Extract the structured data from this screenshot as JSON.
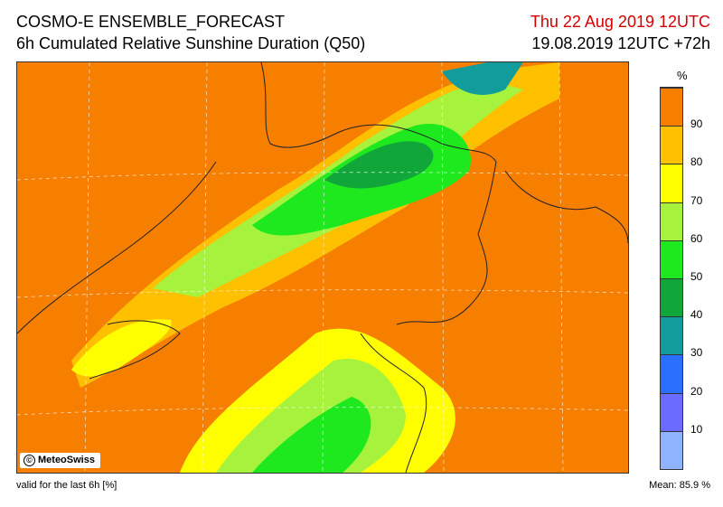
{
  "header": {
    "title": "COSMO-E ENSEMBLE_FORECAST",
    "subtitle": "6h Cumulated Relative Sunshine Duration (Q50)",
    "valid_date": "Thu 22 Aug 2019 12UTC",
    "run_info": "19.08.2019 12UTC +72h"
  },
  "legend": {
    "unit": "%",
    "ticks": [
      "10",
      "20",
      "30",
      "40",
      "50",
      "60",
      "70",
      "80",
      "90"
    ],
    "colors": [
      "#8fb3ff",
      "#6b6bff",
      "#2a6fff",
      "#139c9c",
      "#10a63a",
      "#1ee81e",
      "#a6f23c",
      "#ffff00",
      "#ffc000",
      "#f77f00"
    ]
  },
  "map": {
    "copyright": "MeteoSwiss",
    "dominant_color": "#f77f00"
  },
  "footer": {
    "validity": "valid for the last 6h [%]",
    "mean_label": "Mean:",
    "mean_value": "85.9 %"
  }
}
